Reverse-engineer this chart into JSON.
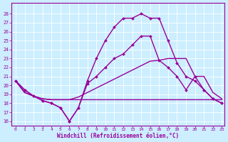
{
  "xlabel": "Windchill (Refroidissement éolien,°C)",
  "bg_color": "#cceeff",
  "line_color": "#990099",
  "grid_color": "#ffffff",
  "xlim_min": -0.5,
  "xlim_max": 23.3,
  "ylim_min": 15.5,
  "ylim_max": 29.2,
  "yticks": [
    16,
    17,
    18,
    19,
    20,
    21,
    22,
    23,
    24,
    25,
    26,
    27,
    28
  ],
  "xticks": [
    0,
    1,
    2,
    3,
    4,
    5,
    6,
    7,
    8,
    9,
    10,
    11,
    12,
    13,
    14,
    15,
    16,
    17,
    18,
    19,
    20,
    21,
    22,
    23
  ],
  "curve1_x": [
    0,
    1,
    2,
    3,
    4,
    5,
    6,
    7,
    8,
    9,
    10,
    11,
    12,
    13,
    14,
    15,
    16,
    17,
    18,
    19,
    20,
    21,
    22,
    23
  ],
  "curve1_y": [
    20.5,
    19.5,
    18.8,
    18.3,
    18.0,
    17.5,
    16.0,
    17.5,
    20.5,
    23.0,
    25.0,
    26.5,
    27.5,
    27.5,
    28.0,
    27.5,
    27.5,
    25.0,
    22.5,
    21.0,
    20.5,
    19.5,
    18.5,
    18.0
  ],
  "curve2_x": [
    0,
    1,
    2,
    3,
    4,
    5,
    6,
    7,
    8,
    9,
    10,
    11,
    12,
    13,
    14,
    15,
    16,
    17,
    18,
    19,
    20,
    21,
    22,
    23
  ],
  "curve2_y": [
    20.5,
    19.5,
    18.8,
    18.3,
    18.0,
    17.5,
    16.0,
    17.5,
    20.2,
    21.0,
    22.0,
    23.0,
    23.5,
    24.5,
    25.5,
    25.5,
    22.8,
    22.0,
    21.0,
    19.5,
    21.0,
    19.5,
    18.5,
    18.0
  ],
  "curve3_x": [
    0,
    1,
    2,
    3,
    4,
    5,
    6,
    7,
    8,
    9,
    10,
    11,
    12,
    13,
    14,
    15,
    16,
    17,
    18,
    19,
    20,
    21,
    22,
    23
  ],
  "curve3_y": [
    20.5,
    19.2,
    18.8,
    18.5,
    18.4,
    18.4,
    18.4,
    18.4,
    18.4,
    18.4,
    18.4,
    18.4,
    18.4,
    18.4,
    18.4,
    18.4,
    18.4,
    18.4,
    18.4,
    18.4,
    18.4,
    18.4,
    18.4,
    18.4
  ],
  "curve4_x": [
    0,
    1,
    2,
    3,
    4,
    5,
    6,
    7,
    8,
    9,
    10,
    11,
    12,
    13,
    14,
    15,
    16,
    17,
    18,
    19,
    20,
    21,
    22,
    23
  ],
  "curve4_y": [
    20.5,
    19.2,
    18.8,
    18.5,
    18.4,
    18.4,
    18.4,
    18.7,
    19.2,
    19.7,
    20.2,
    20.7,
    21.2,
    21.7,
    22.2,
    22.7,
    22.8,
    23.0,
    23.0,
    23.0,
    21.0,
    21.0,
    19.2,
    18.5
  ]
}
